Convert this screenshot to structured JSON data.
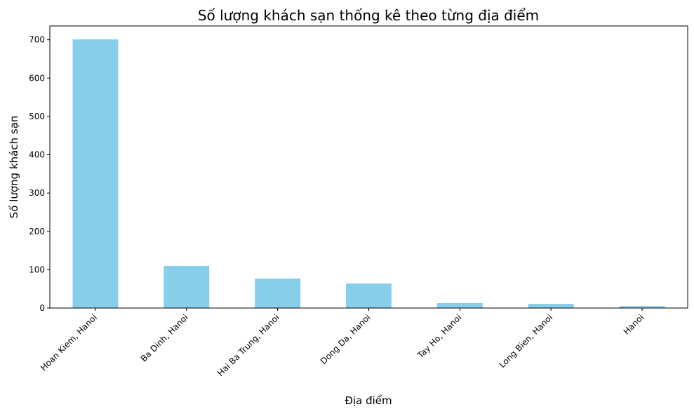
{
  "chart_data": {
    "type": "bar",
    "title": "Số lượng khách sạn thống kê theo từng địa điểm",
    "xlabel": "Địa điểm",
    "ylabel": "Số lượng khách sạn",
    "categories": [
      "Hoan Kiem, Hanoi",
      "Ba Dinh, Hanoi",
      "Hai Ba Trung, Hanoi",
      "Dong Da, Hanoi",
      "Tay Ho, Hanoi",
      "Long Bien, Hanoi",
      "Hanoi"
    ],
    "values": [
      701,
      110,
      77,
      64,
      13,
      11,
      5
    ],
    "ylim": [
      0,
      736
    ],
    "yticks": [
      0,
      100,
      200,
      300,
      400,
      500,
      600,
      700
    ],
    "bar_color": "#87CEEB",
    "grid": false,
    "legend": "none"
  }
}
